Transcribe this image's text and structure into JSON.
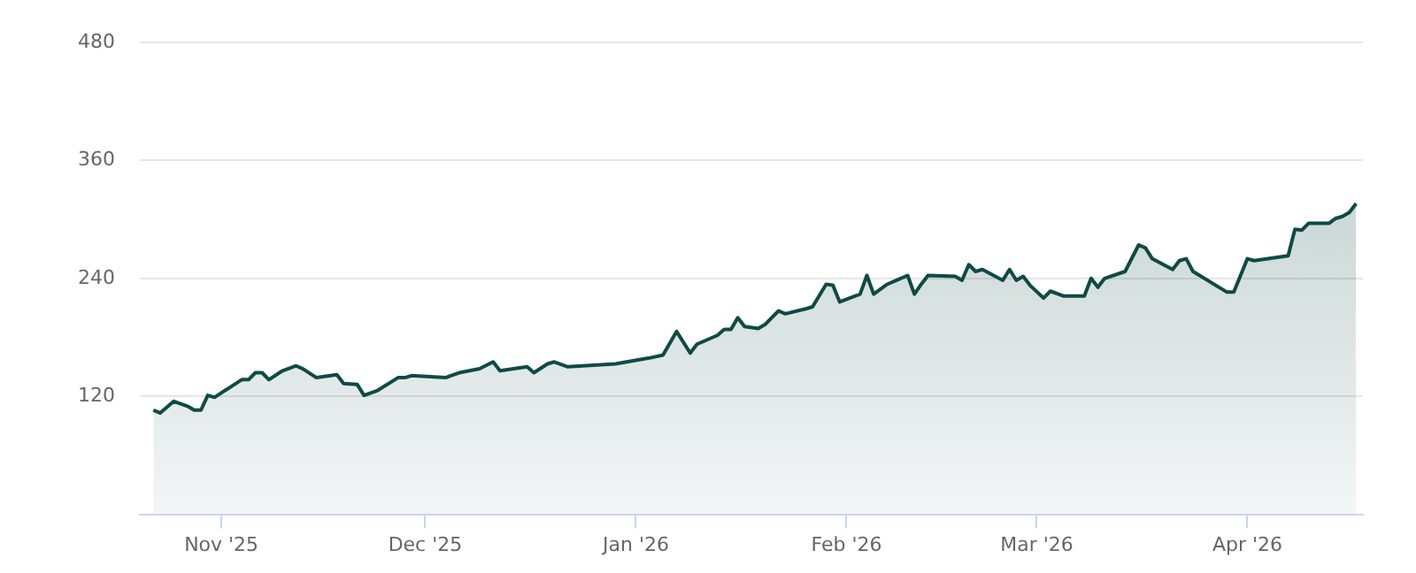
{
  "chart_data": {
    "type": "area",
    "x": [
      "2025-10-22",
      "2025-10-23",
      "2025-10-25",
      "2025-10-27",
      "2025-10-28",
      "2025-10-29",
      "2025-10-30",
      "2025-10-31",
      "2025-11-02",
      "2025-11-04",
      "2025-11-05",
      "2025-11-06",
      "2025-11-07",
      "2025-11-08",
      "2025-11-10",
      "2025-11-12",
      "2025-11-13",
      "2025-11-15",
      "2025-11-18",
      "2025-11-19",
      "2025-11-21",
      "2025-11-22",
      "2025-11-24",
      "2025-11-27",
      "2025-11-28",
      "2025-11-29",
      "2025-12-04",
      "2025-12-06",
      "2025-12-09",
      "2025-12-11",
      "2025-12-12",
      "2025-12-16",
      "2025-12-17",
      "2025-12-19",
      "2025-12-20",
      "2025-12-22",
      "2025-12-29",
      "2026-01-03",
      "2026-01-05",
      "2026-01-07",
      "2026-01-09",
      "2026-01-10",
      "2026-01-13",
      "2026-01-14",
      "2026-01-15",
      "2026-01-16",
      "2026-01-17",
      "2026-01-19",
      "2026-01-20",
      "2026-01-22",
      "2026-01-23",
      "2026-01-26",
      "2026-01-27",
      "2026-01-29",
      "2026-01-30",
      "2026-01-31",
      "2026-02-03",
      "2026-02-04",
      "2026-02-05",
      "2026-02-07",
      "2026-02-10",
      "2026-02-11",
      "2026-02-12",
      "2026-02-13",
      "2026-02-17",
      "2026-02-18",
      "2026-02-19",
      "2026-02-20",
      "2026-02-21",
      "2026-02-24",
      "2026-02-25",
      "2026-02-26",
      "2026-02-27",
      "2026-02-28",
      "2026-03-02",
      "2026-03-03",
      "2026-03-05",
      "2026-03-08",
      "2026-03-09",
      "2026-03-10",
      "2026-03-11",
      "2026-03-14",
      "2026-03-16",
      "2026-03-17",
      "2026-03-18",
      "2026-03-21",
      "2026-03-22",
      "2026-03-23",
      "2026-03-24",
      "2026-03-29",
      "2026-03-30",
      "2026-04-01",
      "2026-04-02",
      "2026-04-07",
      "2026-04-08",
      "2026-04-09",
      "2026-04-10",
      "2026-04-13",
      "2026-04-14",
      "2026-04-15",
      "2026-04-16",
      "2026-04-17"
    ],
    "series": [
      {
        "color": "#0f4a45",
        "values": [
          106,
          103,
          115,
          110,
          106,
          106,
          121,
          119,
          128,
          137,
          137,
          144,
          144,
          137,
          146,
          151,
          148,
          139,
          142,
          133,
          132,
          121,
          126,
          139,
          139,
          141,
          139,
          144,
          148,
          155,
          146,
          150,
          144,
          153,
          155,
          150,
          153,
          159,
          162,
          186,
          164,
          173,
          182,
          188,
          188,
          200,
          191,
          189,
          193,
          207,
          204,
          209,
          211,
          234,
          233,
          216,
          224,
          243,
          224,
          234,
          243,
          224,
          234,
          243,
          242,
          238,
          254,
          247,
          249,
          238,
          249,
          238,
          242,
          233,
          220,
          227,
          222,
          222,
          240,
          231,
          240,
          247,
          274,
          271,
          260,
          249,
          258,
          260,
          247,
          226,
          226,
          260,
          258,
          263,
          290,
          289,
          296,
          296,
          301,
          303,
          307,
          316
        ]
      }
    ],
    "xlim": [
      "2025-10-20",
      "2026-04-18"
    ],
    "xticks": [
      {
        "value": "2025-11-01",
        "label": "Nov '25"
      },
      {
        "value": "2025-12-01",
        "label": "Dec '25"
      },
      {
        "value": "2026-01-01",
        "label": "Jan '26"
      },
      {
        "value": "2026-02-01",
        "label": "Feb '26"
      },
      {
        "value": "2026-03-01",
        "label": "Mar '26"
      },
      {
        "value": "2026-04-01",
        "label": "Apr '26"
      }
    ],
    "ylim": [
      0,
      480
    ],
    "yticks": [
      120,
      240,
      360,
      480
    ],
    "grid": "y"
  }
}
